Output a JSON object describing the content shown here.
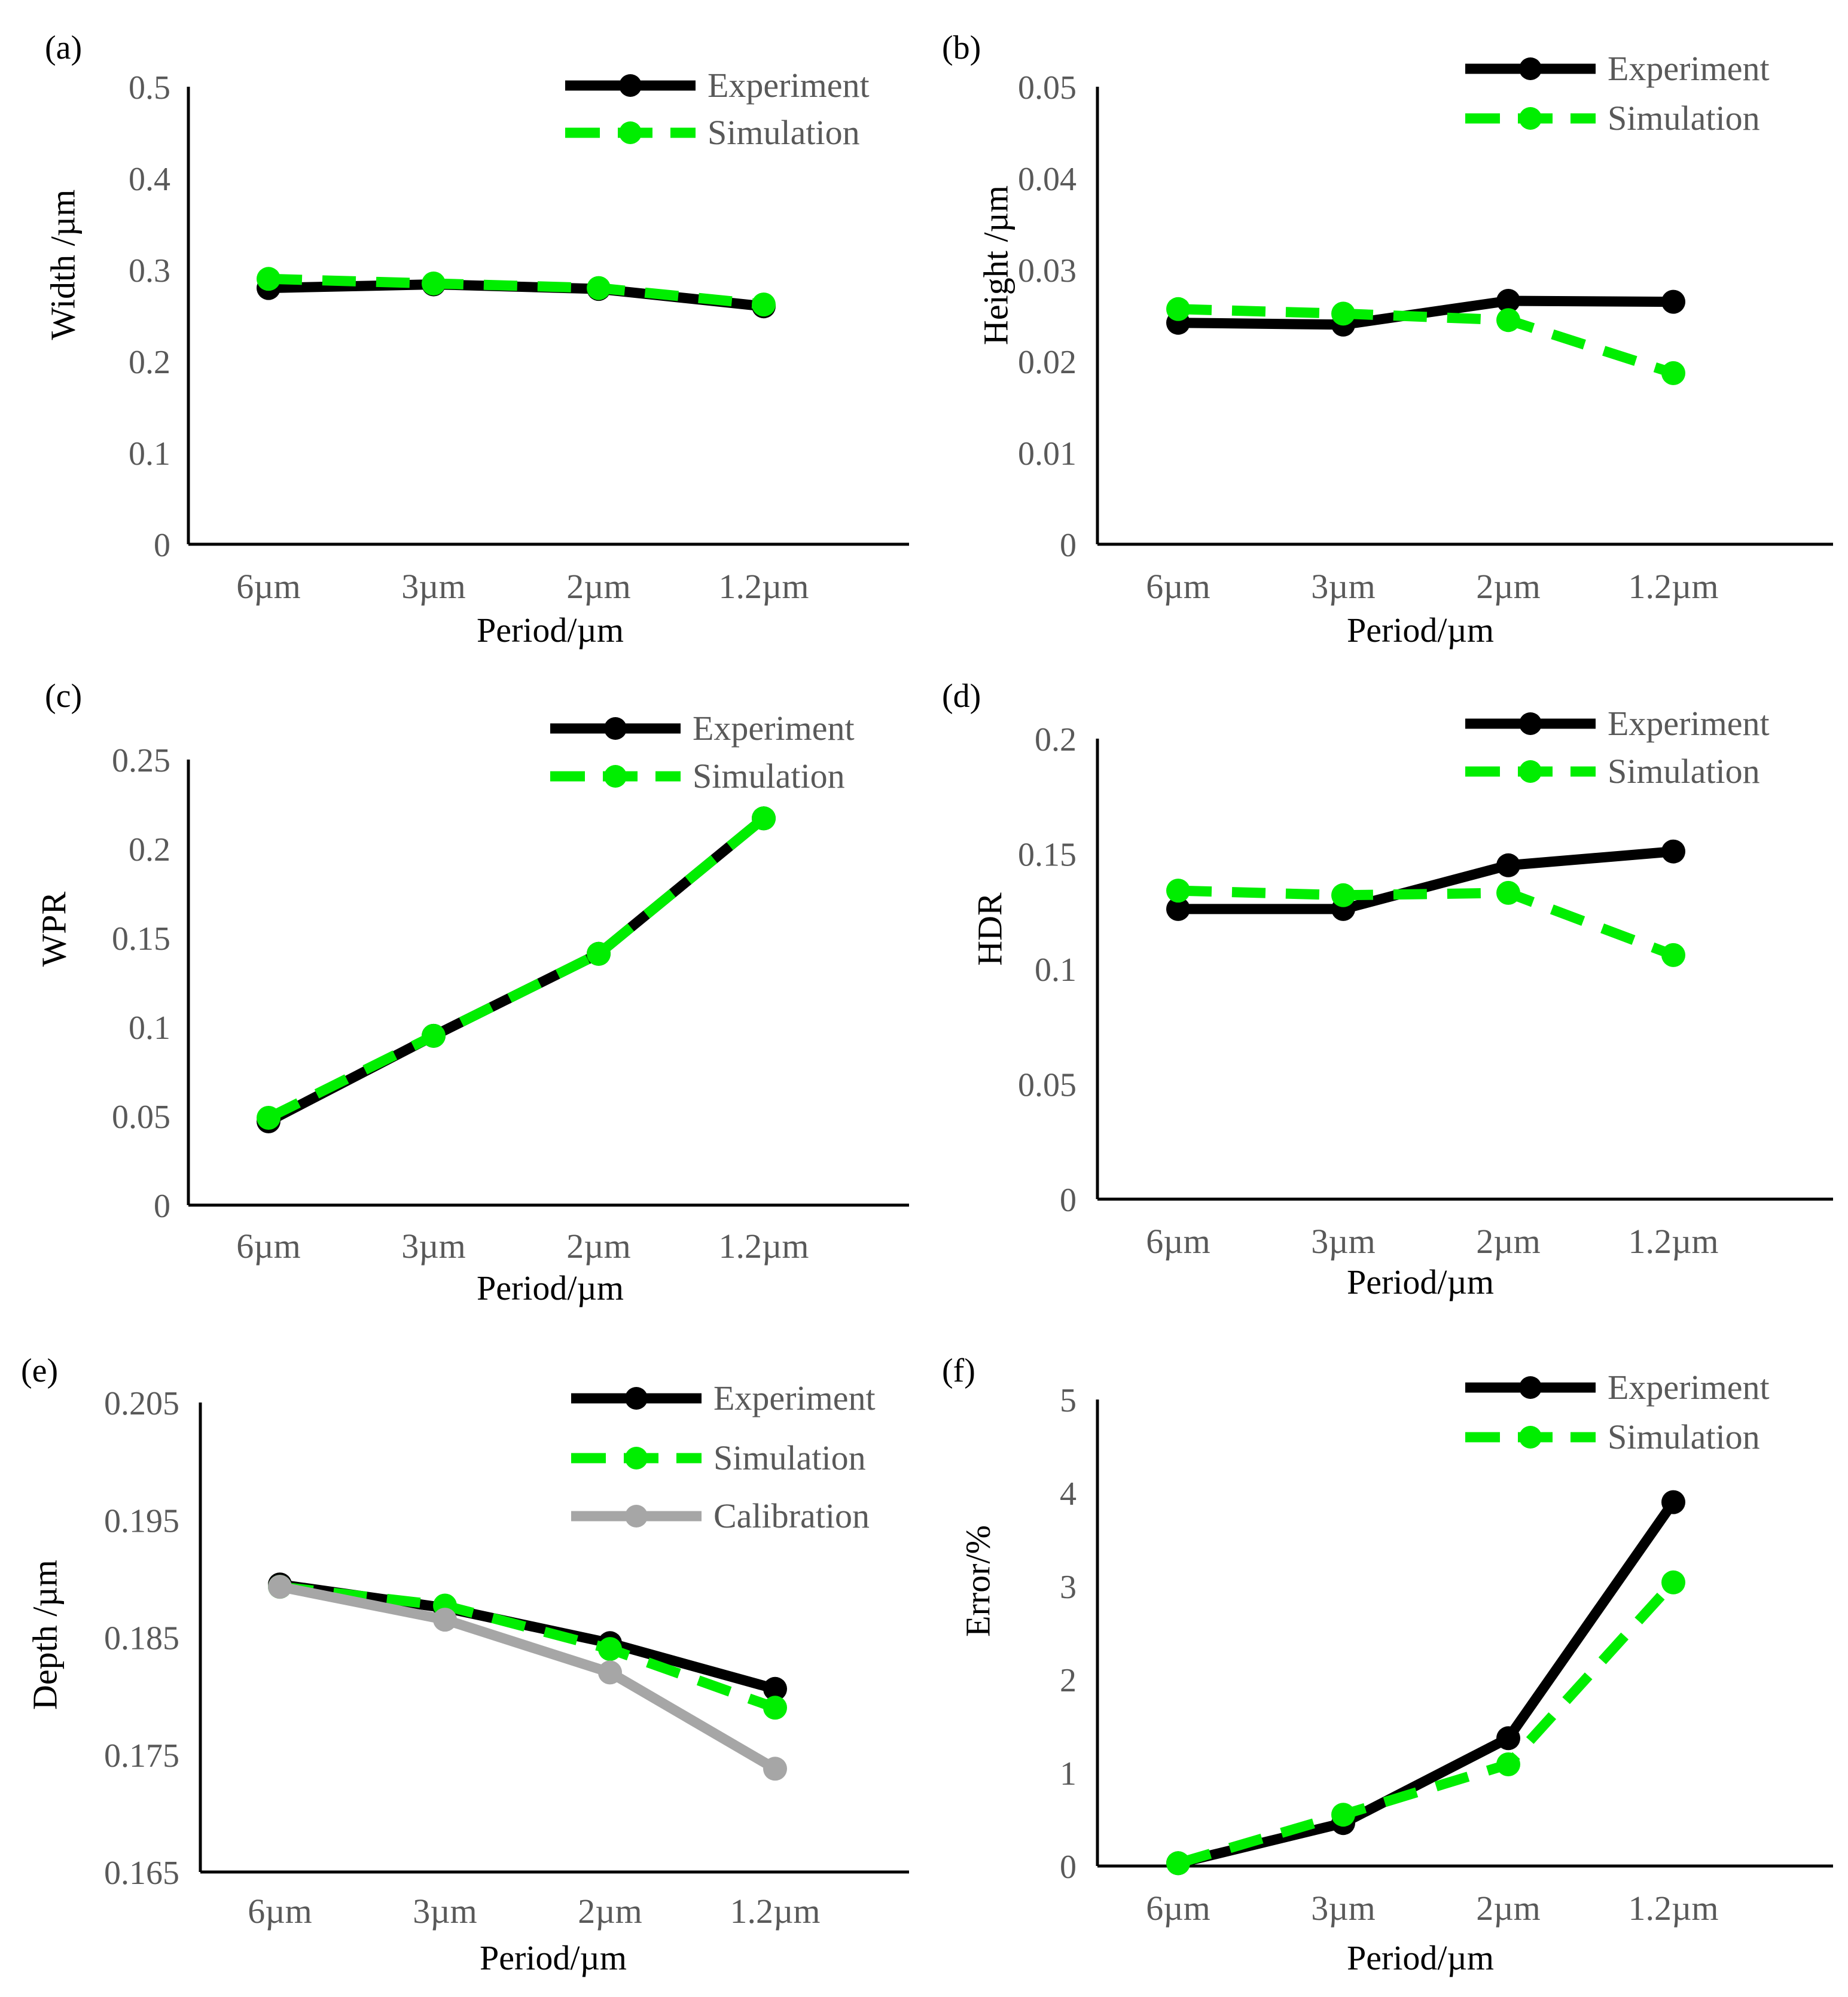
{
  "colors": {
    "experiment": "#000000",
    "simulation": "#00ee00",
    "calibration": "#a6a6a6",
    "tick_text": "#595959"
  },
  "chart_data": [
    {
      "id": "a",
      "panel_label": "(a)",
      "type": "line",
      "title": "",
      "xlabel": "Period/µm",
      "ylabel": "Width /µm",
      "categories": [
        "6µm",
        "3µm",
        "2µm",
        "1.2µm"
      ],
      "ylim": [
        0,
        0.5
      ],
      "yticks": [
        "0",
        "0.1",
        "0.2",
        "0.3",
        "0.4",
        "0.5"
      ],
      "legend_position": "top-right",
      "grid": false,
      "series": [
        {
          "name": "Experiment",
          "style": "solid",
          "color": "#000000",
          "values": [
            0.28,
            0.284,
            0.279,
            0.26
          ]
        },
        {
          "name": "Simulation",
          "style": "dashed",
          "color": "#00ee00",
          "values": [
            0.29,
            0.285,
            0.28,
            0.262
          ]
        }
      ]
    },
    {
      "id": "b",
      "panel_label": "(b)",
      "type": "line",
      "title": "",
      "xlabel": "Period/µm",
      "ylabel": "Height /µm",
      "categories": [
        "6µm",
        "3µm",
        "2µm",
        "1.2µm"
      ],
      "ylim": [
        0,
        0.05
      ],
      "yticks": [
        "0",
        "0.01",
        "0.02",
        "0.03",
        "0.04",
        "0.05"
      ],
      "legend_position": "top-right",
      "grid": false,
      "series": [
        {
          "name": "Experiment",
          "style": "solid",
          "color": "#000000",
          "values": [
            0.0242,
            0.024,
            0.0266,
            0.0265
          ]
        },
        {
          "name": "Simulation",
          "style": "dashed",
          "color": "#00ee00",
          "values": [
            0.0257,
            0.0252,
            0.0245,
            0.0187
          ]
        }
      ]
    },
    {
      "id": "c",
      "panel_label": "(c)",
      "type": "line",
      "title": "",
      "xlabel": "Period/µm",
      "ylabel": "WPR",
      "categories": [
        "6µm",
        "3µm",
        "2µm",
        "1.2µm"
      ],
      "ylim": [
        0,
        0.25
      ],
      "yticks": [
        "0",
        "0.05",
        "0.1",
        "0.15",
        "0.2",
        "0.25"
      ],
      "legend_position": "top-right",
      "grid": false,
      "series": [
        {
          "name": "Experiment",
          "style": "solid",
          "color": "#000000",
          "values": [
            0.047,
            0.095,
            0.141,
            0.217
          ]
        },
        {
          "name": "Simulation",
          "style": "dashed",
          "color": "#00ee00",
          "values": [
            0.049,
            0.095,
            0.141,
            0.217
          ]
        }
      ]
    },
    {
      "id": "d",
      "panel_label": "(d)",
      "type": "line",
      "title": "",
      "xlabel": "Period/µm",
      "ylabel": "HDR",
      "categories": [
        "6µm",
        "3µm",
        "2µm",
        "1.2µm"
      ],
      "ylim": [
        0,
        0.2
      ],
      "yticks": [
        "0",
        "0.05",
        "0.1",
        "0.15",
        "0.2"
      ],
      "legend_position": "top-right",
      "grid": false,
      "series": [
        {
          "name": "Experiment",
          "style": "solid",
          "color": "#000000",
          "values": [
            0.126,
            0.126,
            0.145,
            0.151
          ]
        },
        {
          "name": "Simulation",
          "style": "dashed",
          "color": "#00ee00",
          "values": [
            0.134,
            0.132,
            0.133,
            0.106
          ]
        }
      ]
    },
    {
      "id": "e",
      "panel_label": "(e)",
      "type": "line",
      "title": "",
      "xlabel": "Period/µm",
      "ylabel": "Depth /µm",
      "categories": [
        "6µm",
        "3µm",
        "2µm",
        "1.2µm"
      ],
      "ylim": [
        0.165,
        0.205
      ],
      "yticks": [
        "0.165",
        "0.175",
        "0.185",
        "0.195",
        "0.205"
      ],
      "legend_position": "top-right",
      "grid": false,
      "series": [
        {
          "name": "Experiment",
          "style": "solid",
          "color": "#000000",
          "values": [
            0.1895,
            0.1875,
            0.1845,
            0.1806
          ]
        },
        {
          "name": "Simulation",
          "style": "dashed",
          "color": "#00ee00",
          "values": [
            0.1893,
            0.1877,
            0.184,
            0.179
          ]
        },
        {
          "name": "Calibration",
          "style": "solid",
          "color": "#a6a6a6",
          "values": [
            0.1893,
            0.1865,
            0.182,
            0.1738
          ]
        }
      ]
    },
    {
      "id": "f",
      "panel_label": "(f)",
      "type": "line",
      "title": "",
      "xlabel": "Period/µm",
      "ylabel": "Error/%",
      "categories": [
        "6µm",
        "3µm",
        "2µm",
        "1.2µm"
      ],
      "ylim": [
        0,
        5
      ],
      "yticks": [
        "0",
        "1",
        "2",
        "3",
        "4",
        "5"
      ],
      "legend_position": "top-right",
      "grid": false,
      "series": [
        {
          "name": "Experiment",
          "style": "solid",
          "color": "#000000",
          "values": [
            0.03,
            0.46,
            1.37,
            3.9
          ]
        },
        {
          "name": "Simulation",
          "style": "dashed",
          "color": "#00ee00",
          "values": [
            0.03,
            0.55,
            1.09,
            3.04
          ]
        }
      ]
    }
  ]
}
